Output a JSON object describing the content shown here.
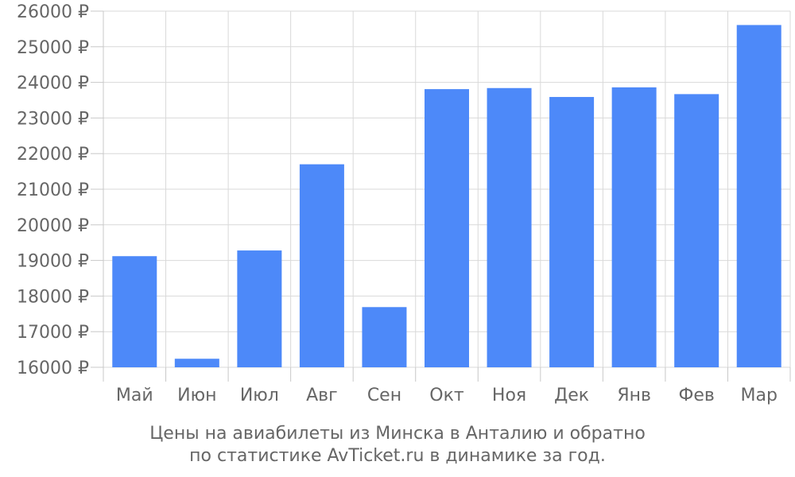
{
  "chart_data": {
    "type": "bar",
    "categories": [
      "Май",
      "Июн",
      "Июл",
      "Авг",
      "Сен",
      "Окт",
      "Ноя",
      "Дек",
      "Янв",
      "Фев",
      "Мар"
    ],
    "series": [
      {
        "values": [
          19120,
          16240,
          19280,
          21700,
          17690,
          23810,
          23840,
          23590,
          23860,
          23670,
          25610
        ]
      }
    ],
    "ylim": [
      16000,
      26000
    ],
    "yticks": [
      16000,
      17000,
      18000,
      19000,
      20000,
      21000,
      22000,
      23000,
      24000,
      25000,
      26000
    ],
    "ytick_labels": [
      "16000 ₽",
      "17000 ₽",
      "18000 ₽",
      "19000 ₽",
      "20000 ₽",
      "21000 ₽",
      "22000 ₽",
      "23000 ₽",
      "24000 ₽",
      "25000 ₽",
      "26000 ₽"
    ],
    "grid": true,
    "bar_color": "#4d89f9",
    "grid_color": "#d9d9d9",
    "text_color": "#666666"
  },
  "caption": {
    "line1": "Цены на авиабилеты из Минска в Анталию и обратно",
    "line2": "по статистике AvTicket.ru в динамике за год."
  }
}
